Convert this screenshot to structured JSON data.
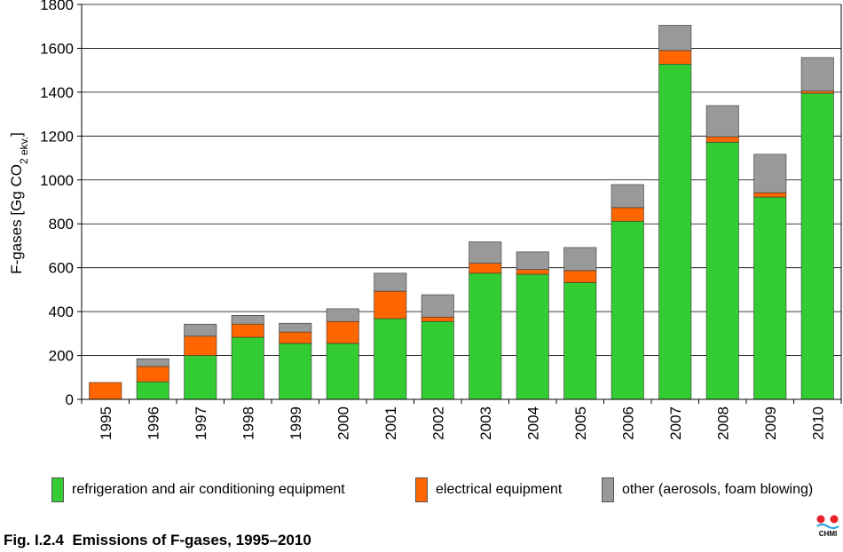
{
  "chart_data": {
    "type": "bar",
    "stacked": true,
    "categories": [
      "1995",
      "1996",
      "1997",
      "1998",
      "1999",
      "2000",
      "2001",
      "2002",
      "2003",
      "2004",
      "2005",
      "2006",
      "2007",
      "2008",
      "2009",
      "2010"
    ],
    "series": [
      {
        "name": "refrigeration and air conditioning equipment",
        "color": "#33cc33",
        "values": [
          0,
          80,
          200,
          283,
          255,
          255,
          368,
          355,
          575,
          570,
          532,
          812,
          1528,
          1172,
          922,
          1395
        ]
      },
      {
        "name": "electrical equipment",
        "color": "#ff6600",
        "values": [
          77,
          70,
          88,
          60,
          52,
          100,
          125,
          20,
          45,
          22,
          55,
          62,
          62,
          25,
          20,
          10
        ]
      },
      {
        "name": "other (aerosols, foam blowing)",
        "color": "#999999",
        "values": [
          0,
          35,
          55,
          40,
          40,
          58,
          82,
          102,
          98,
          80,
          105,
          105,
          115,
          142,
          175,
          153
        ]
      }
    ],
    "ylabel_main": "F-gases [Gg CO",
    "ylabel_sub": "2 ekv.",
    "ylabel_end": "]",
    "ylim": [
      0,
      1800
    ],
    "yticks": [
      0,
      200,
      400,
      600,
      800,
      1000,
      1200,
      1400,
      1600,
      1800
    ],
    "grid": true,
    "legend_position": "bottom"
  },
  "caption": "Fig. I.2.4  Emissions of F-gases, 1995–2010",
  "logo": {
    "text": "CHMI",
    "dot_color": "#e8202a",
    "wave_color": "#2aa7e0"
  }
}
